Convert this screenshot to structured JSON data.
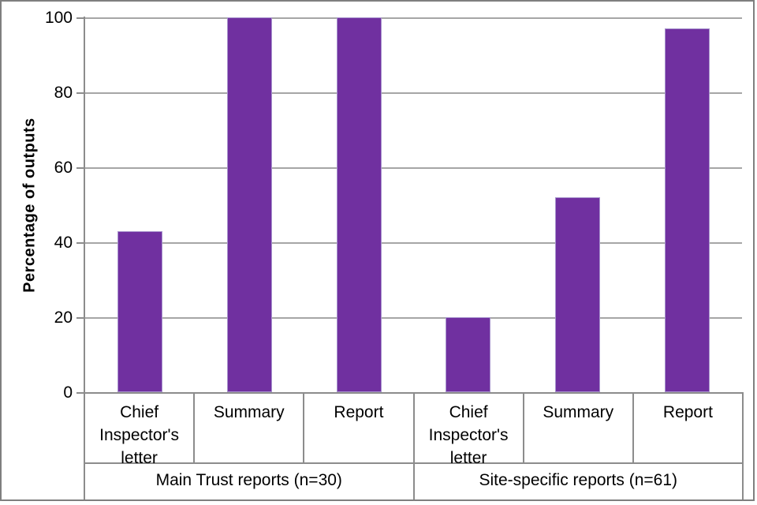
{
  "chart_data": {
    "type": "bar",
    "title": "",
    "xlabel": "",
    "ylabel": "Percentage of outputs",
    "ylim": [
      0,
      100
    ],
    "yticks": [
      0,
      20,
      40,
      60,
      80,
      100
    ],
    "grid": "horizontal gridlines at every 20",
    "legend": "none",
    "bar_color": "#7030A0",
    "bar_edge_color": "#A894CD",
    "groups": [
      {
        "label": "Main Trust reports (n=30)",
        "categories": [
          "Chief Inspector's letter",
          "Summary",
          "Report"
        ],
        "values": [
          43,
          100,
          100
        ]
      },
      {
        "label": "Site-specific reports (n=61)",
        "categories": [
          "Chief Inspector's letter",
          "Summary",
          "Report"
        ],
        "values": [
          20,
          52,
          97
        ]
      }
    ]
  },
  "colors": {
    "background": "#FFFFFF",
    "gridline": "#A6A6A6",
    "axis_line": "#8C8C8C",
    "frame_border": "#7F7F7F",
    "text": "#000000"
  }
}
